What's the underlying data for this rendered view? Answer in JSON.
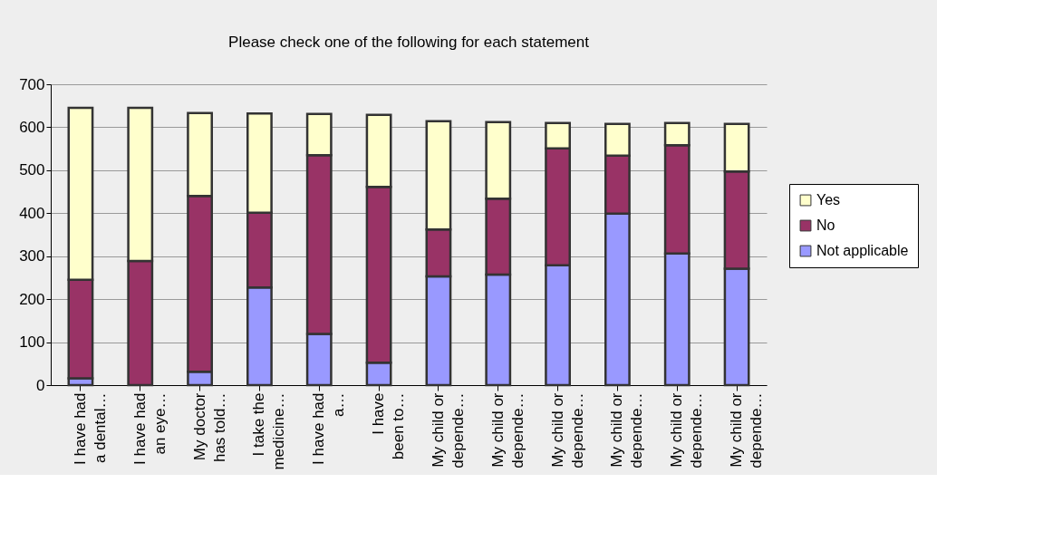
{
  "chart_data": {
    "type": "bar",
    "title": "Please check one of the following for each statement",
    "categories": [
      "I have had\na dental…",
      "I have had\nan eye…",
      "My doctor\nhas told…",
      "I take the\nmedicine…",
      "I have had\na…",
      "I have\nbeen to…",
      "My child or\ndepende…",
      "My child or\ndepende…",
      "My child or\ndepende…",
      "My child or\ndepende…",
      "My child or\ndepende…",
      "My child or\ndepende…"
    ],
    "series": [
      {
        "name": "Not applicable",
        "color": "#9999ff",
        "values": [
          16,
          null,
          31,
          227,
          119,
          52,
          253,
          257,
          279,
          399,
          306,
          271
        ]
      },
      {
        "name": "No",
        "color": "#993366",
        "values": [
          229,
          289,
          409,
          174,
          416,
          409,
          109,
          177,
          272,
          135,
          252,
          226
        ]
      },
      {
        "name": "Yes",
        "color": "#ffffcc",
        "values": [
          400,
          356,
          193,
          231,
          96,
          168,
          252,
          178,
          59,
          74,
          52,
          111
        ]
      }
    ],
    "stacked": true,
    "ylim": [
      0,
      700
    ],
    "yticks": [
      0,
      100,
      200,
      300,
      400,
      500,
      600,
      700
    ],
    "grid": "y",
    "legend": "right"
  }
}
